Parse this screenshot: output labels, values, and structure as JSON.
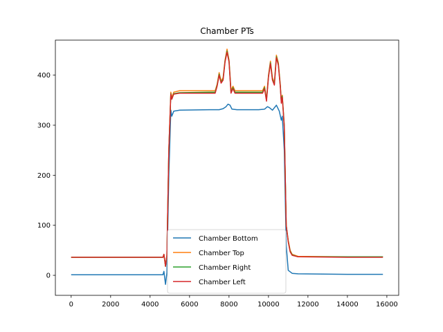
{
  "chart_data": {
    "type": "line",
    "title": "Chamber PTs",
    "xlabel": "",
    "ylabel": "",
    "xlim": [
      -800,
      16600
    ],
    "ylim": [
      -40,
      470
    ],
    "xticks": [
      0,
      2000,
      4000,
      6000,
      8000,
      10000,
      12000,
      14000,
      16000
    ],
    "yticks": [
      0,
      100,
      200,
      300,
      400
    ],
    "grid": false,
    "legend_position": "lower-center",
    "series": [
      {
        "name": "Chamber Bottom",
        "color": "#1f77b4",
        "points": [
          [
            0,
            1
          ],
          [
            2000,
            1
          ],
          [
            4000,
            1
          ],
          [
            4650,
            1
          ],
          [
            4700,
            8
          ],
          [
            4780,
            -18
          ],
          [
            4850,
            5
          ],
          [
            4950,
            200
          ],
          [
            5050,
            330
          ],
          [
            5100,
            318
          ],
          [
            5200,
            328
          ],
          [
            5500,
            330
          ],
          [
            7000,
            331
          ],
          [
            7500,
            331
          ],
          [
            7700,
            333
          ],
          [
            7850,
            337
          ],
          [
            7950,
            342
          ],
          [
            8050,
            340
          ],
          [
            8150,
            332
          ],
          [
            8400,
            331
          ],
          [
            9500,
            331
          ],
          [
            9800,
            332
          ],
          [
            9950,
            337
          ],
          [
            10050,
            335
          ],
          [
            10200,
            330
          ],
          [
            10400,
            340
          ],
          [
            10550,
            328
          ],
          [
            10650,
            310
          ],
          [
            10700,
            318
          ],
          [
            10800,
            250
          ],
          [
            10900,
            60
          ],
          [
            11000,
            10
          ],
          [
            11200,
            4
          ],
          [
            11500,
            3
          ],
          [
            14000,
            2
          ],
          [
            15800,
            2
          ]
        ]
      },
      {
        "name": "Chamber Top",
        "color": "#ff7f0e",
        "points": [
          [
            0,
            36
          ],
          [
            2000,
            36
          ],
          [
            4000,
            36
          ],
          [
            4650,
            36
          ],
          [
            4700,
            42
          ],
          [
            4780,
            18
          ],
          [
            4850,
            40
          ],
          [
            4950,
            250
          ],
          [
            5050,
            366
          ],
          [
            5100,
            355
          ],
          [
            5200,
            366
          ],
          [
            5500,
            369
          ],
          [
            7000,
            369
          ],
          [
            7300,
            369
          ],
          [
            7400,
            382
          ],
          [
            7500,
            405
          ],
          [
            7600,
            388
          ],
          [
            7700,
            395
          ],
          [
            7800,
            430
          ],
          [
            7900,
            452
          ],
          [
            8000,
            430
          ],
          [
            8100,
            370
          ],
          [
            8200,
            378
          ],
          [
            8300,
            369
          ],
          [
            9500,
            369
          ],
          [
            9700,
            369
          ],
          [
            9800,
            378
          ],
          [
            9900,
            352
          ],
          [
            10000,
            400
          ],
          [
            10100,
            428
          ],
          [
            10200,
            395
          ],
          [
            10300,
            385
          ],
          [
            10400,
            440
          ],
          [
            10500,
            425
          ],
          [
            10600,
            380
          ],
          [
            10650,
            348
          ],
          [
            10700,
            360
          ],
          [
            10800,
            300
          ],
          [
            10900,
            100
          ],
          [
            11000,
            70
          ],
          [
            11100,
            50
          ],
          [
            11200,
            42
          ],
          [
            11500,
            38
          ],
          [
            14000,
            37
          ],
          [
            15800,
            37
          ]
        ]
      },
      {
        "name": "Chamber Right",
        "color": "#2ca02c",
        "points": [
          [
            0,
            36
          ],
          [
            2000,
            36
          ],
          [
            4000,
            36
          ],
          [
            4650,
            36
          ],
          [
            4700,
            42
          ],
          [
            4780,
            18
          ],
          [
            4850,
            40
          ],
          [
            4950,
            250
          ],
          [
            5050,
            363
          ],
          [
            5100,
            352
          ],
          [
            5200,
            363
          ],
          [
            5500,
            365
          ],
          [
            7000,
            366
          ],
          [
            7300,
            366
          ],
          [
            7400,
            380
          ],
          [
            7500,
            402
          ],
          [
            7600,
            386
          ],
          [
            7700,
            392
          ],
          [
            7800,
            428
          ],
          [
            7900,
            448
          ],
          [
            8000,
            428
          ],
          [
            8100,
            366
          ],
          [
            8200,
            375
          ],
          [
            8300,
            366
          ],
          [
            9500,
            366
          ],
          [
            9700,
            366
          ],
          [
            9800,
            375
          ],
          [
            9900,
            350
          ],
          [
            10000,
            398
          ],
          [
            10100,
            425
          ],
          [
            10200,
            392
          ],
          [
            10300,
            382
          ],
          [
            10400,
            437
          ],
          [
            10500,
            422
          ],
          [
            10600,
            378
          ],
          [
            10650,
            346
          ],
          [
            10700,
            358
          ],
          [
            10800,
            298
          ],
          [
            10900,
            100
          ],
          [
            11000,
            68
          ],
          [
            11100,
            48
          ],
          [
            11200,
            41
          ],
          [
            11500,
            37
          ],
          [
            14000,
            37
          ],
          [
            15800,
            37
          ]
        ]
      },
      {
        "name": "Chamber Left",
        "color": "#d62728",
        "points": [
          [
            0,
            36
          ],
          [
            2000,
            36
          ],
          [
            4000,
            36
          ],
          [
            4650,
            36
          ],
          [
            4700,
            42
          ],
          [
            4780,
            18
          ],
          [
            4850,
            40
          ],
          [
            4950,
            250
          ],
          [
            5050,
            362
          ],
          [
            5100,
            352
          ],
          [
            5200,
            362
          ],
          [
            5500,
            364
          ],
          [
            7000,
            364
          ],
          [
            7300,
            364
          ],
          [
            7400,
            378
          ],
          [
            7500,
            400
          ],
          [
            7600,
            384
          ],
          [
            7700,
            390
          ],
          [
            7800,
            426
          ],
          [
            7900,
            446
          ],
          [
            8000,
            426
          ],
          [
            8100,
            364
          ],
          [
            8200,
            373
          ],
          [
            8300,
            364
          ],
          [
            9500,
            364
          ],
          [
            9700,
            364
          ],
          [
            9800,
            373
          ],
          [
            9900,
            348
          ],
          [
            10000,
            396
          ],
          [
            10100,
            423
          ],
          [
            10200,
            390
          ],
          [
            10300,
            380
          ],
          [
            10400,
            435
          ],
          [
            10500,
            420
          ],
          [
            10600,
            376
          ],
          [
            10650,
            344
          ],
          [
            10700,
            356
          ],
          [
            10800,
            296
          ],
          [
            10900,
            100
          ],
          [
            11000,
            67
          ],
          [
            11100,
            47
          ],
          [
            11200,
            40
          ],
          [
            11500,
            37
          ],
          [
            14000,
            36
          ],
          [
            15800,
            36
          ]
        ]
      }
    ]
  }
}
